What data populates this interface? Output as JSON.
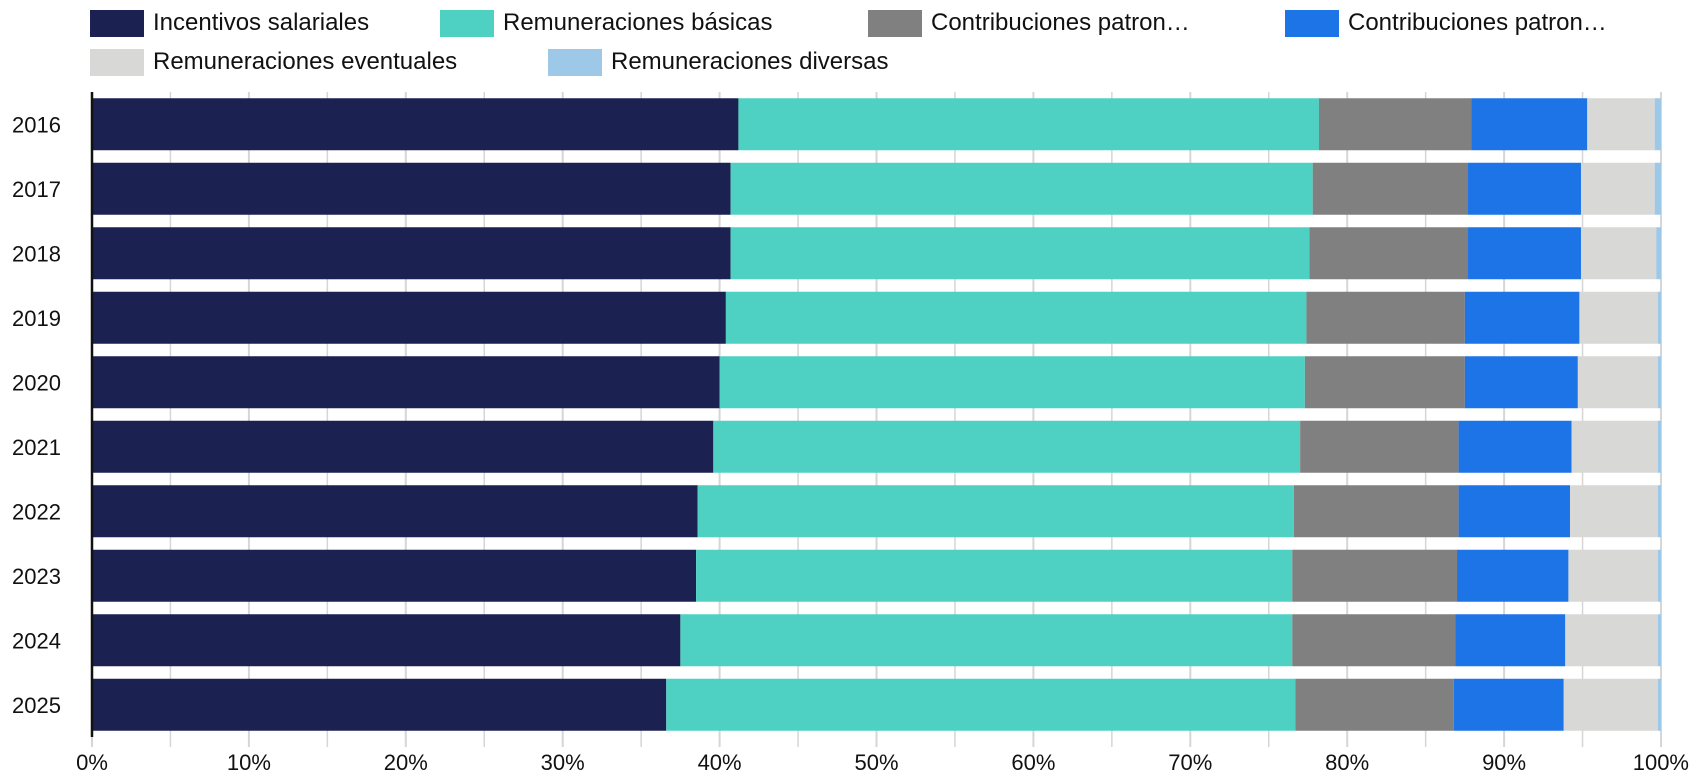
{
  "chart_data": {
    "type": "bar",
    "orientation": "horizontal",
    "stacked": true,
    "categories": [
      "2016",
      "2017",
      "2018",
      "2019",
      "2020",
      "2021",
      "2022",
      "2023",
      "2024",
      "2025"
    ],
    "series": [
      {
        "name": "Incentivos salariales",
        "color": "#1b2150",
        "values": [
          41.2,
          40.7,
          40.7,
          40.4,
          40.0,
          39.6,
          38.6,
          38.5,
          37.5,
          36.6
        ]
      },
      {
        "name": "Remuneraciones básicas",
        "color": "#4ed1c3",
        "values": [
          37.0,
          37.1,
          36.9,
          37.0,
          37.3,
          37.4,
          38.0,
          38.0,
          39.0,
          40.1
        ]
      },
      {
        "name": "Contribuciones patron…",
        "color": "#808080",
        "values": [
          9.7,
          9.9,
          10.1,
          10.1,
          10.2,
          10.1,
          10.5,
          10.5,
          10.4,
          10.1
        ]
      },
      {
        "name": "Contribuciones patron…",
        "color": "#1d74e6",
        "values": [
          7.4,
          7.2,
          7.2,
          7.3,
          7.2,
          7.2,
          7.1,
          7.1,
          7.0,
          7.0
        ]
      },
      {
        "name": "Remuneraciones eventuales",
        "color": "#d8d8d6",
        "values": [
          4.3,
          4.7,
          4.8,
          5.0,
          5.1,
          5.5,
          5.6,
          5.7,
          5.9,
          6.0
        ]
      },
      {
        "name": "Remuneraciones diversas",
        "color": "#9dc8e8",
        "values": [
          0.4,
          0.4,
          0.3,
          0.2,
          0.2,
          0.2,
          0.2,
          0.2,
          0.2,
          0.2
        ]
      }
    ],
    "xlim": [
      0,
      100
    ],
    "xticks": [
      "0%",
      "10%",
      "20%",
      "30%",
      "40%",
      "50%",
      "60%",
      "70%",
      "80%",
      "90%",
      "100%"
    ],
    "grid": "vertical",
    "legend_position": "top"
  }
}
